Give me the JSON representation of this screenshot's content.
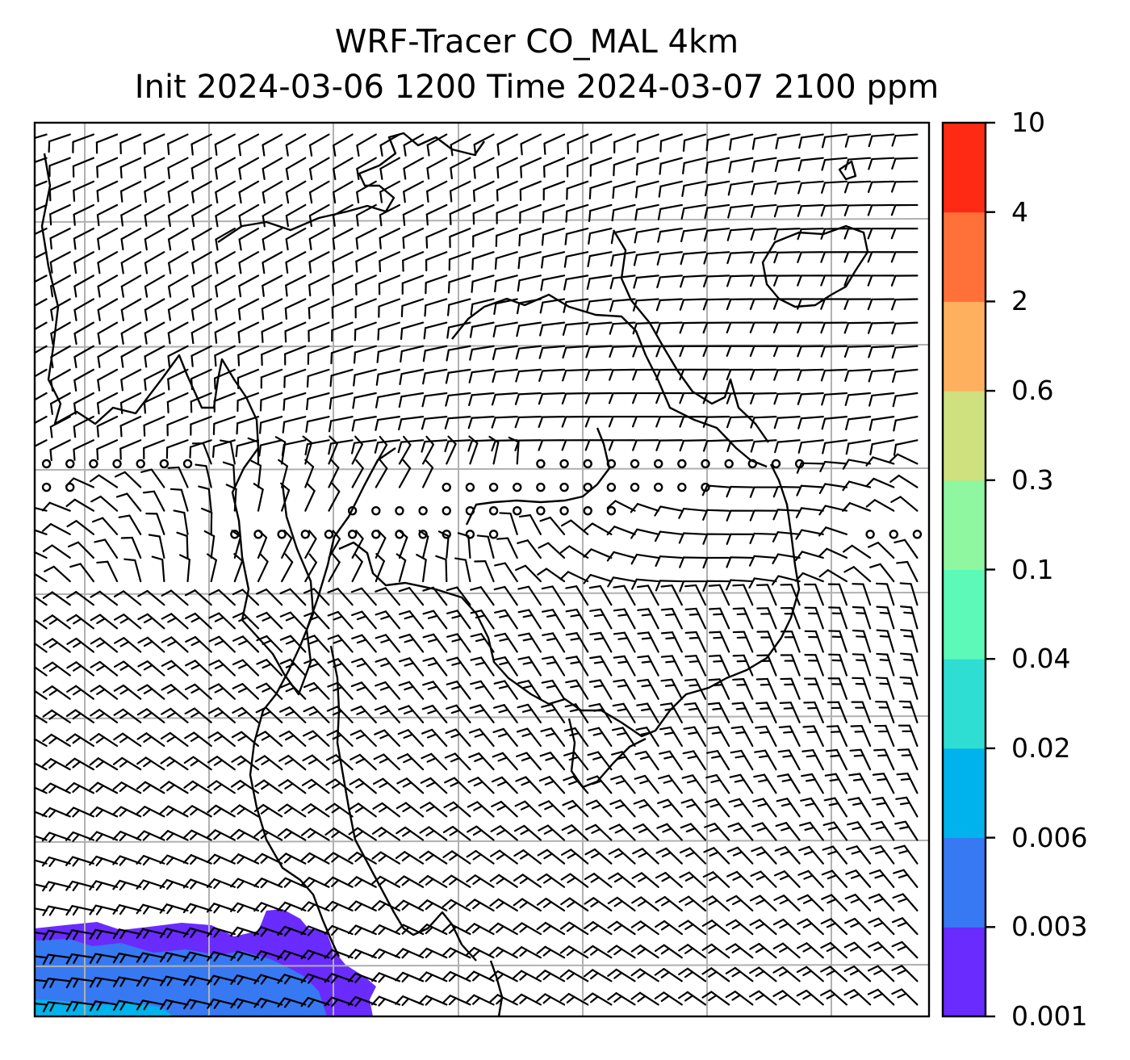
{
  "title_line1": "WRF-Tracer CO_MAL 4km",
  "title_line2": "Init 2024-03-06 1200 Time 2024-03-07 2100 ppm",
  "colorbar": {
    "levels": [
      "0.001",
      "0.003",
      "0.006",
      "0.02",
      "0.04",
      "0.1",
      "0.3",
      "0.6",
      "2",
      "4",
      "10"
    ],
    "colors": [
      "#6a2bff",
      "#3779f2",
      "#00b3ec",
      "#2fded2",
      "#5cf9b8",
      "#8ff79f",
      "#cfe07f",
      "#ffb05f",
      "#ff7139",
      "#ff2a14"
    ]
  },
  "map_style": {
    "gridline_color": "#b0b0b0",
    "coastline_color": "#000000",
    "wind_symbol": "wind-barb-icon",
    "calm_symbol": "calm-circle-icon"
  }
}
